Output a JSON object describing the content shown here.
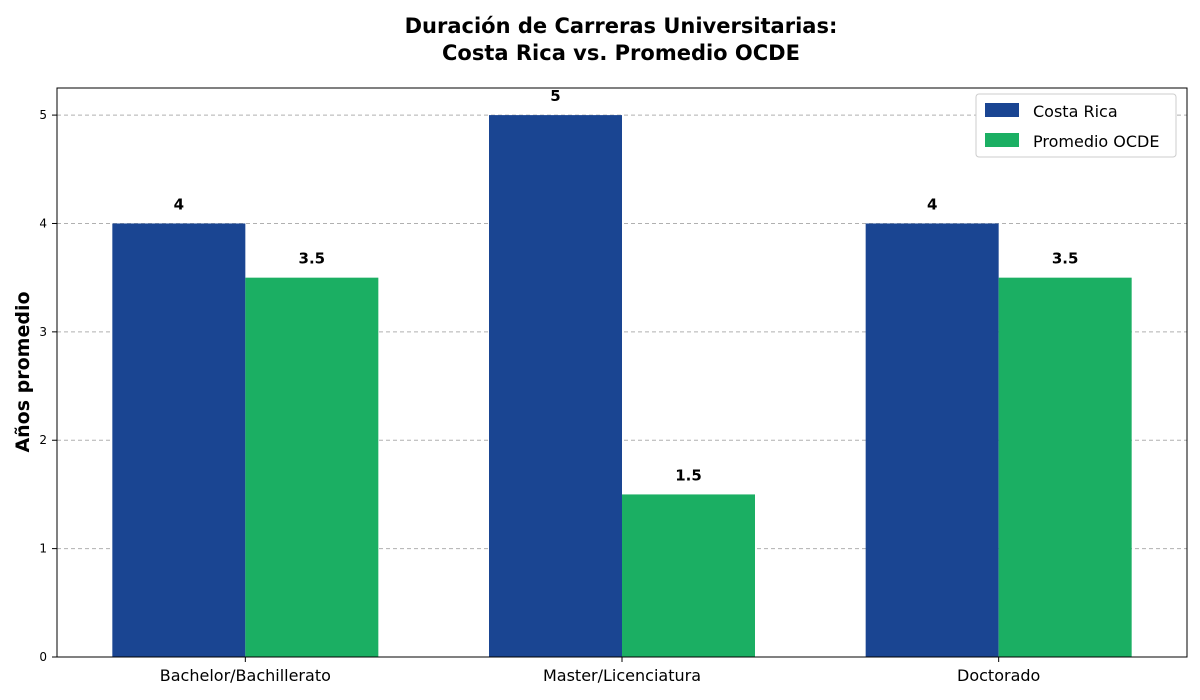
{
  "chart_data": {
    "type": "bar",
    "title_lines": [
      "Duración de Carreras Universitarias:",
      "Costa Rica vs. Promedio OCDE"
    ],
    "ylabel": "Años promedio",
    "xlabel": "",
    "categories": [
      "Bachelor/Bachillerato",
      "Master/Licenciatura",
      "Doctorado"
    ],
    "series": [
      {
        "name": "Costa Rica",
        "values": [
          4,
          5,
          4
        ],
        "color": "#1a4592"
      },
      {
        "name": "Promedio OCDE",
        "values": [
          3.5,
          1.5,
          3.5
        ],
        "color": "#1baf63"
      }
    ],
    "data_labels": [
      [
        "4",
        "5",
        "4"
      ],
      [
        "3.5",
        "1.5",
        "3.5"
      ]
    ],
    "yticks": [
      "0",
      "1",
      "2",
      "3",
      "4",
      "5"
    ],
    "ylim": [
      0,
      5.25
    ],
    "grid": "y-dashed",
    "legend_position": "top-right"
  }
}
